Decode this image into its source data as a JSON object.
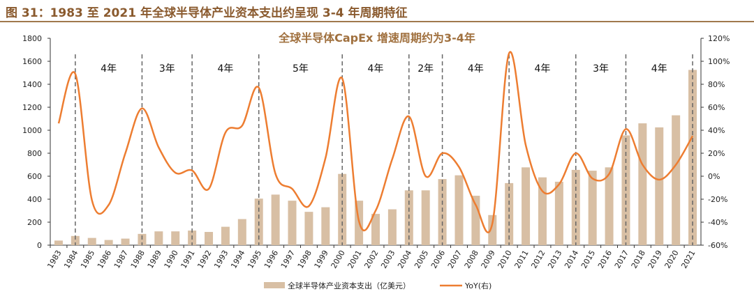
{
  "figure_title": "图 31：1983 至 2021 年全球半导体产业资本支出约呈现 3-4 年周期特征",
  "chart_data": {
    "type": "bar+line",
    "title": "全球半导体CapEx 增速周期约为3-4年",
    "categories": [
      "1983",
      "1984",
      "1985",
      "1986",
      "1987",
      "1988",
      "1989",
      "1990",
      "1991",
      "1992",
      "1993",
      "1994",
      "1995",
      "1996",
      "1997",
      "1998",
      "1999",
      "2000",
      "2001",
      "2002",
      "2003",
      "2004",
      "2005",
      "2006",
      "2007",
      "2008",
      "2009",
      "2010",
      "2011",
      "2012",
      "2013",
      "2014",
      "2015",
      "2016",
      "2017",
      "2018",
      "2019",
      "2020",
      "2021"
    ],
    "series": [
      {
        "name": "全球半导体产业资本支出（亿美元）",
        "type": "bar",
        "axis": "left",
        "color": "#d8bfa4",
        "values": [
          40,
          80,
          63,
          45,
          57,
          98,
          120,
          120,
          127,
          115,
          160,
          227,
          405,
          440,
          387,
          290,
          330,
          620,
          387,
          272,
          312,
          477,
          477,
          575,
          608,
          430,
          262,
          540,
          677,
          590,
          552,
          655,
          648,
          677,
          955,
          1060,
          1025,
          1130,
          1525
        ]
      },
      {
        "name": "YoY(右)",
        "type": "line",
        "axis": "right",
        "color": "#ed7d31",
        "values": [
          46,
          89,
          -21,
          -25,
          20,
          59,
          25,
          3,
          5,
          -11,
          38,
          44,
          77,
          2,
          -11,
          -26,
          16,
          85,
          -39,
          -30,
          15,
          52,
          0,
          20,
          8,
          -25,
          -41,
          107,
          27,
          -13,
          -7,
          20,
          -2,
          2,
          41,
          10,
          -3,
          10,
          35
        ]
      }
    ],
    "left_axis": {
      "ylim": [
        0,
        1800
      ],
      "ticks": [
        "0",
        "200",
        "400",
        "600",
        "800",
        "1000",
        "1200",
        "1400",
        "1600",
        "1800"
      ]
    },
    "right_axis": {
      "ylim": [
        -60,
        120
      ],
      "ticks": [
        "-60%",
        "-40%",
        "-20%",
        "0%",
        "20%",
        "40%",
        "60%",
        "80%",
        "100%",
        "120%"
      ]
    },
    "cycle_dividers": [
      "1984",
      "1988",
      "1991",
      "1995",
      "2000",
      "2004",
      "2006",
      "2010",
      "2014",
      "2017",
      "2021"
    ],
    "cycle_labels": [
      "4年",
      "3年",
      "4年",
      "5年",
      "4年",
      "2年",
      "4年",
      "4年",
      "3年",
      "4年"
    ],
    "grid": false,
    "legend_position": "bottom"
  }
}
